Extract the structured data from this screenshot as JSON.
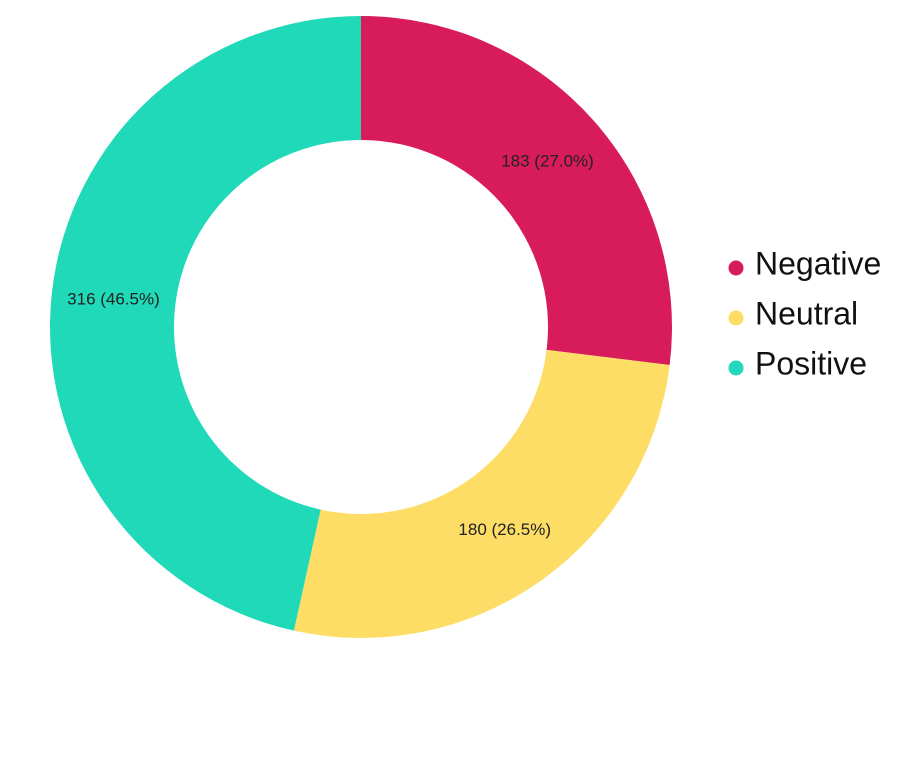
{
  "chart_data": {
    "type": "donut",
    "categories": [
      "Negative",
      "Neutral",
      "Positive"
    ],
    "values": [
      183,
      180,
      316
    ],
    "value_labels": [
      "183 (27.0%)",
      "180 (26.5%)",
      "316 (46.5%)"
    ],
    "colors": [
      "#d81b5a",
      "#fddd66",
      "#20d9b9"
    ],
    "legend": "right"
  }
}
